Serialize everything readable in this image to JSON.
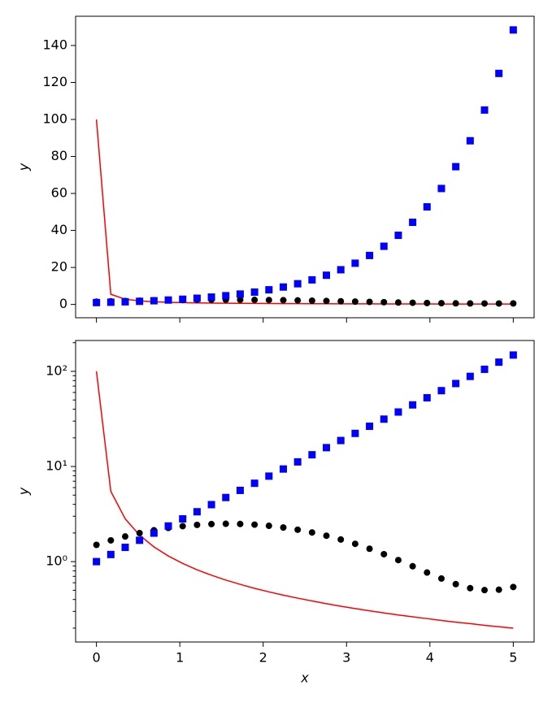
{
  "chart_data": [
    {
      "type": "line-scatter",
      "ylabel": "y",
      "yscale": "linear",
      "x": [
        0,
        0.1724,
        0.3448,
        0.5172,
        0.6897,
        0.8621,
        1.0345,
        1.2069,
        1.3793,
        1.5517,
        1.7241,
        1.8966,
        2.069,
        2.2414,
        2.4138,
        2.5862,
        2.7586,
        2.931,
        3.1034,
        3.2759,
        3.4483,
        3.6207,
        3.7931,
        3.9655,
        4.1379,
        4.3103,
        4.4828,
        4.6552,
        4.8276,
        5
      ],
      "series": [
        {
          "color": "#ff0000",
          "marker": "line",
          "values": [
            100,
            5.48,
            2.82,
            1.896,
            1.428,
            1.146,
            0.957,
            0.821,
            0.72,
            0.64,
            0.577,
            0.524,
            0.481,
            0.444,
            0.413,
            0.386,
            0.361,
            0.34,
            0.321,
            0.304,
            0.289,
            0.275,
            0.263,
            0.252,
            0.241,
            0.231,
            0.223,
            0.214,
            0.207,
            0.1996
          ]
        },
        {
          "color": "#000000",
          "marker": "circle",
          "values": [
            1.5,
            1.672,
            1.838,
            1.994,
            2.136,
            2.259,
            2.36,
            2.435,
            2.482,
            2.5,
            2.488,
            2.448,
            2.379,
            2.283,
            2.165,
            2.026,
            1.872,
            1.708,
            1.538,
            1.366,
            1.197,
            1.038,
            0.894,
            0.768,
            0.664,
            0.58,
            0.526,
            0.502,
            0.507,
            0.541
          ]
        },
        {
          "color": "#0000ff",
          "marker": "square",
          "values": [
            1,
            1.188,
            1.412,
            1.677,
            1.993,
            2.368,
            2.814,
            3.343,
            3.972,
            4.72,
            5.608,
            6.664,
            7.918,
            9.407,
            11.18,
            13.28,
            15.78,
            18.75,
            22.28,
            26.47,
            31.45,
            37.37,
            44.4,
            52.75,
            62.68,
            74.47,
            88.48,
            105.1,
            124.9,
            148.4
          ]
        }
      ],
      "xlim": [
        -0.25,
        5.25
      ],
      "xticks": [
        0,
        1,
        2,
        3,
        4,
        5
      ],
      "ylim": [
        -7.2,
        155.8
      ],
      "yticks": [
        0,
        20,
        40,
        60,
        80,
        100,
        120,
        140
      ]
    },
    {
      "type": "line-scatter",
      "ylabel": "y",
      "xlabel": "x",
      "yscale": "log",
      "x": [
        0,
        0.1724,
        0.3448,
        0.5172,
        0.6897,
        0.8621,
        1.0345,
        1.2069,
        1.3793,
        1.5517,
        1.7241,
        1.8966,
        2.069,
        2.2414,
        2.4138,
        2.5862,
        2.7586,
        2.931,
        3.1034,
        3.2759,
        3.4483,
        3.6207,
        3.7931,
        3.9655,
        4.1379,
        4.3103,
        4.4828,
        4.6552,
        4.8276,
        5
      ],
      "series": [
        {
          "color": "#ff0000",
          "marker": "line",
          "values": [
            100,
            5.48,
            2.82,
            1.896,
            1.428,
            1.146,
            0.957,
            0.821,
            0.72,
            0.64,
            0.577,
            0.524,
            0.481,
            0.444,
            0.413,
            0.386,
            0.361,
            0.34,
            0.321,
            0.304,
            0.289,
            0.275,
            0.263,
            0.252,
            0.241,
            0.231,
            0.223,
            0.214,
            0.207,
            0.1996
          ]
        },
        {
          "color": "#000000",
          "marker": "circle",
          "values": [
            1.5,
            1.672,
            1.838,
            1.994,
            2.136,
            2.259,
            2.36,
            2.435,
            2.482,
            2.5,
            2.488,
            2.448,
            2.379,
            2.283,
            2.165,
            2.026,
            1.872,
            1.708,
            1.538,
            1.366,
            1.197,
            1.038,
            0.894,
            0.768,
            0.664,
            0.58,
            0.526,
            0.502,
            0.507,
            0.541
          ]
        },
        {
          "color": "#0000ff",
          "marker": "square",
          "values": [
            1,
            1.188,
            1.412,
            1.677,
            1.993,
            2.368,
            2.814,
            3.343,
            3.972,
            4.72,
            5.608,
            6.664,
            7.918,
            9.407,
            11.18,
            13.28,
            15.78,
            18.75,
            22.28,
            26.47,
            31.45,
            37.37,
            44.4,
            52.75,
            62.68,
            74.47,
            88.48,
            105.1,
            124.9,
            148.4
          ]
        }
      ],
      "xlim": [
        -0.25,
        5.25
      ],
      "xticks": [
        0,
        1,
        2,
        3,
        4,
        5
      ],
      "ylim": [
        0.143,
        211
      ],
      "yticks": [
        {
          "value": 1,
          "label": "10⁰"
        },
        {
          "value": 10,
          "label": "10¹"
        },
        {
          "value": 100,
          "label": "10²"
        }
      ],
      "yminorticks": [
        0.2,
        0.3,
        0.4,
        0.5,
        0.6,
        0.7,
        0.8,
        0.9,
        2,
        3,
        4,
        5,
        6,
        7,
        8,
        9,
        20,
        30,
        40,
        50,
        60,
        70,
        80,
        90,
        200
      ]
    }
  ]
}
